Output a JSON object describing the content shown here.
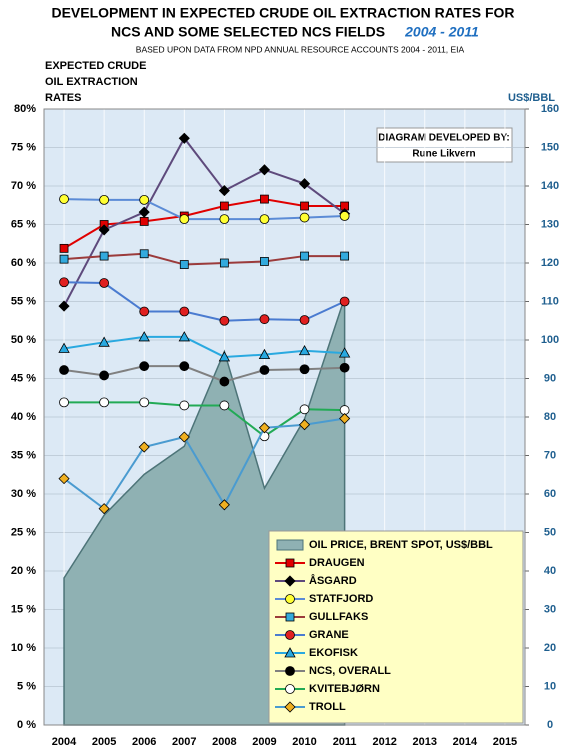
{
  "chart_data": {
    "type": "line",
    "title": [
      "DEVELOPMENT IN EXPECTED CRUDE OIL EXTRACTION RATES FOR",
      "NCS AND SOME SELECTED NCS FIELDS"
    ],
    "title_period": "2004 - 2011",
    "subtitle": "BASED UPON DATA FROM NPD ANNUAL RESOURCE ACCOUNTS 2004 - 2011, EIA",
    "y_label": [
      "EXPECTED CRUDE",
      "OIL  EXTRACTION",
      "RATES"
    ],
    "y2_label": "US$/BBL",
    "annotation": [
      "DIAGRAM DEVELOPED BY:",
      "Rune Likvern"
    ],
    "categories": [
      "2004",
      "2005",
      "2006",
      "2007",
      "2008",
      "2009",
      "2010",
      "2011",
      "2012",
      "2013",
      "2014",
      "2015"
    ],
    "ylim": [
      0,
      80
    ],
    "yticks": [
      {
        "value": 0,
        "label": "0 %"
      },
      {
        "value": 5,
        "label": "5 %"
      },
      {
        "value": 10,
        "label": "10 %"
      },
      {
        "value": 15,
        "label": "15 %"
      },
      {
        "value": 20,
        "label": "20 %"
      },
      {
        "value": 25,
        "label": "25 %"
      },
      {
        "value": 30,
        "label": "30 %"
      },
      {
        "value": 35,
        "label": "35 %"
      },
      {
        "value": 40,
        "label": "40 %"
      },
      {
        "value": 45,
        "label": "45 %"
      },
      {
        "value": 50,
        "label": "50 %"
      },
      {
        "value": 55,
        "label": "55 %"
      },
      {
        "value": 60,
        "label": "60 %"
      },
      {
        "value": 65,
        "label": "65 %"
      },
      {
        "value": 70,
        "label": "70 %"
      },
      {
        "value": 75,
        "label": "75 %"
      },
      {
        "value": 80,
        "label": "80%"
      }
    ],
    "y2lim": [
      0,
      160
    ],
    "y2ticks": [
      0,
      10,
      20,
      30,
      40,
      50,
      60,
      70,
      80,
      90,
      100,
      110,
      120,
      130,
      140,
      150,
      160
    ],
    "grid": true,
    "legend": "lower right",
    "series": [
      {
        "name": "OIL PRICE, BRENT SPOT,  US$/BBL",
        "type": "area",
        "axis": "y2",
        "color": "#8fb1b3",
        "edge_color": "#4d7478",
        "values": [
          38.2,
          54.5,
          65.1,
          72.4,
          97.0,
          61.5,
          79.5,
          111.0,
          null,
          null,
          null,
          null
        ]
      },
      {
        "name": "DRAUGEN",
        "color": "#e00000",
        "marker": "square",
        "marker_color": "#e00000",
        "values": [
          61.9,
          65.0,
          65.4,
          66.1,
          67.4,
          68.3,
          67.4,
          67.4,
          null,
          null,
          null,
          null
        ]
      },
      {
        "name": "ÅSGARD",
        "color": "#5e4a7c",
        "marker": "diamond",
        "marker_color": "#000000",
        "values": [
          54.4,
          64.3,
          66.6,
          76.2,
          69.4,
          72.1,
          70.3,
          66.4,
          null,
          null,
          null,
          null
        ]
      },
      {
        "name": "STATFJORD",
        "color": "#5b8bd6",
        "marker": "circle",
        "marker_color": "#ffff33",
        "values": [
          68.3,
          68.2,
          68.2,
          65.7,
          65.7,
          65.7,
          65.9,
          66.1,
          null,
          null,
          null,
          null
        ]
      },
      {
        "name": "GULLFAKS",
        "color": "#9b3b3b",
        "marker": "square",
        "marker_color": "#33aadd",
        "values": [
          60.5,
          60.9,
          61.2,
          59.8,
          60.0,
          60.2,
          60.9,
          60.9,
          null,
          null,
          null,
          null
        ]
      },
      {
        "name": "GRANE",
        "color": "#4a7bd0",
        "marker": "circle",
        "marker_color": "#e02020",
        "values": [
          57.5,
          57.4,
          53.7,
          53.7,
          52.5,
          52.7,
          52.6,
          55.0,
          null,
          null,
          null,
          null
        ]
      },
      {
        "name": "EKOFISK",
        "color": "#29a9e0",
        "marker": "triangle",
        "marker_color": "#29a9e0",
        "values": [
          48.9,
          49.7,
          50.4,
          50.4,
          47.8,
          48.1,
          48.6,
          48.3,
          null,
          null,
          null,
          null
        ]
      },
      {
        "name": "NCS, OVERALL",
        "color": "#808080",
        "marker": "circle",
        "marker_color": "#000000",
        "values": [
          46.1,
          45.4,
          46.6,
          46.6,
          44.6,
          46.1,
          46.2,
          46.4,
          null,
          null,
          null,
          null
        ]
      },
      {
        "name": "KVITEBJØRN",
        "color": "#22aa55",
        "marker": "circle",
        "marker_color": "#ffffff",
        "values": [
          41.9,
          41.9,
          41.9,
          41.5,
          41.5,
          37.5,
          41.0,
          40.9,
          null,
          null,
          null,
          null
        ]
      },
      {
        "name": "TROLL",
        "color": "#4a9bd0",
        "marker": "diamond",
        "marker_color": "#f0b020",
        "values": [
          32.0,
          28.1,
          36.1,
          37.4,
          28.6,
          38.6,
          39.0,
          39.8,
          null,
          null,
          null,
          null
        ]
      }
    ]
  }
}
